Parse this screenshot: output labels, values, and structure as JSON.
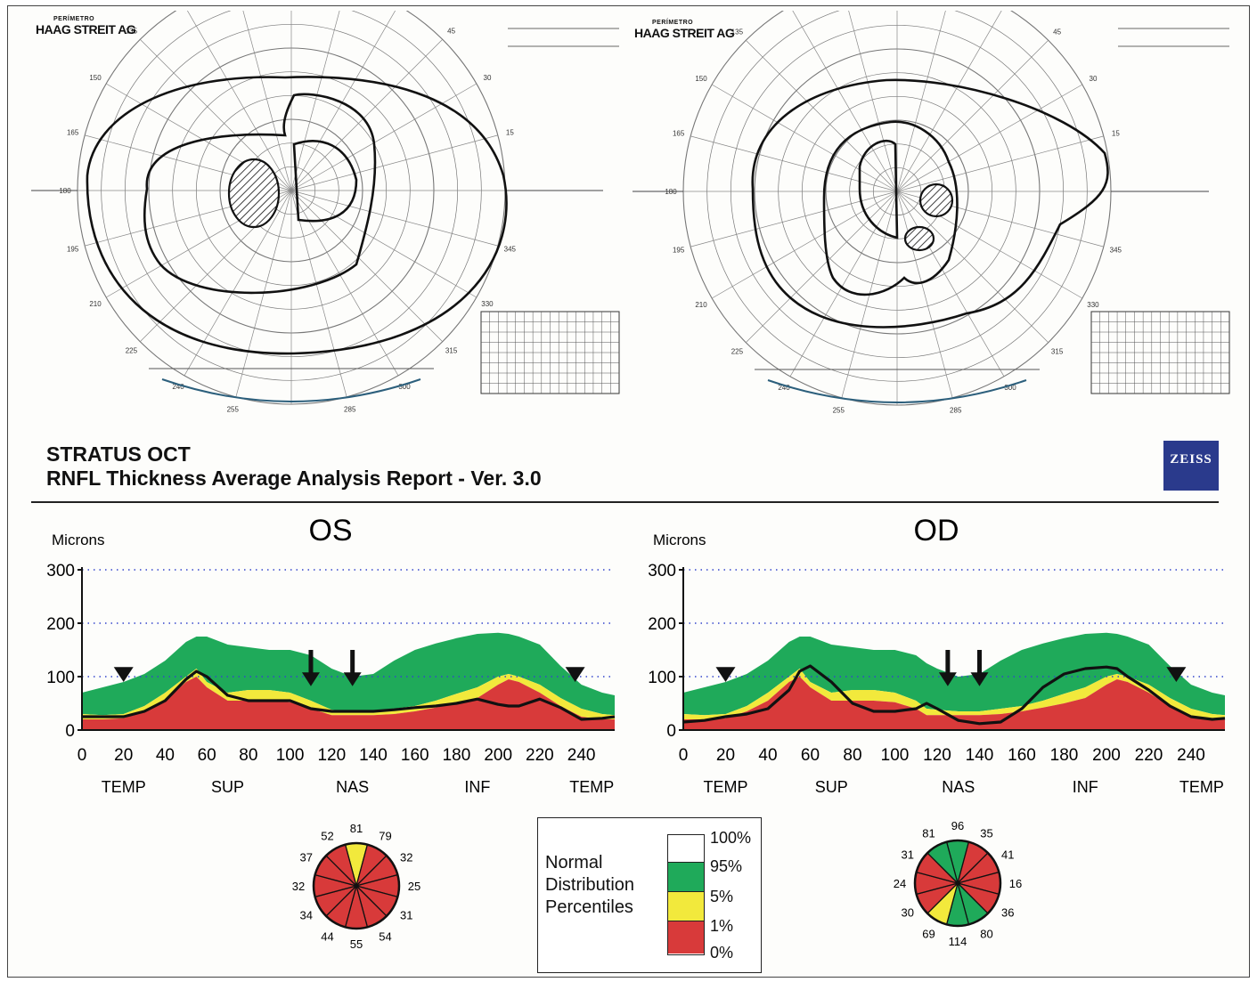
{
  "header": {
    "line1": "STRATUS OCT",
    "line2": "RNFL Thickness Average Analysis  Report - Ver. 3.0",
    "logo": "ZEISS"
  },
  "perimetry": [
    {
      "brand_small": "PERÍMETRO",
      "brand": "HAAG STREIT AG"
    },
    {
      "brand_small": "PERÍMETRO",
      "brand": "HAAG STREIT AG"
    }
  ],
  "colors": {
    "normal_band": "#1faa5a",
    "borderline_band": "#f2e93c",
    "abnormal_band": "#d83a3a",
    "grid": "#3344cc"
  },
  "chart_data": [
    {
      "type": "area",
      "title": "OS",
      "ylabel": "Microns",
      "ylim": [
        0,
        300
      ],
      "xlim": [
        0,
        256
      ],
      "yticks": [
        0,
        100,
        200,
        300
      ],
      "xticks": [
        0,
        20,
        40,
        60,
        80,
        100,
        120,
        140,
        160,
        180,
        200,
        220,
        240
      ],
      "sector_labels": [
        "TEMP",
        "SUP",
        "NAS",
        "INF",
        "TEMP"
      ],
      "grid": "dotted horizontal",
      "x": [
        0,
        10,
        20,
        30,
        40,
        50,
        55,
        60,
        70,
        80,
        90,
        100,
        110,
        120,
        130,
        140,
        150,
        160,
        170,
        180,
        190,
        200,
        205,
        210,
        220,
        230,
        240,
        250,
        256
      ],
      "series": [
        {
          "values": [
            25,
            25,
            25,
            35,
            55,
            95,
            110,
            100,
            65,
            55,
            55,
            55,
            40,
            35,
            35,
            35,
            38,
            42,
            45,
            50,
            58,
            48,
            45,
            45,
            58,
            42,
            20,
            22,
            25
          ]
        }
      ],
      "bands": {
        "p1": [
          20,
          20,
          22,
          35,
          55,
          90,
          100,
          80,
          55,
          55,
          55,
          52,
          40,
          28,
          28,
          28,
          30,
          35,
          42,
          50,
          60,
          85,
          95,
          90,
          70,
          45,
          25,
          20,
          20
        ],
        "p5": [
          30,
          28,
          30,
          45,
          70,
          100,
          115,
          90,
          70,
          75,
          75,
          70,
          55,
          38,
          35,
          35,
          40,
          45,
          55,
          68,
          80,
          100,
          105,
          100,
          85,
          60,
          40,
          30,
          28
        ],
        "p95": [
          70,
          80,
          90,
          105,
          130,
          165,
          175,
          175,
          160,
          155,
          150,
          150,
          140,
          115,
          100,
          105,
          130,
          150,
          162,
          172,
          180,
          182,
          180,
          175,
          160,
          120,
          85,
          70,
          65
        ],
        "p100": [
          70,
          80,
          90,
          105,
          130,
          165,
          175,
          175,
          160,
          155,
          150,
          150,
          140,
          115,
          100,
          105,
          130,
          150,
          162,
          172,
          180,
          182,
          180,
          175,
          160,
          120,
          85,
          70,
          65
        ]
      },
      "arrows": [
        20,
        110,
        130,
        237
      ],
      "clock_hours": [
        81,
        79,
        32,
        25,
        31,
        54,
        55,
        44,
        34,
        32,
        37,
        52
      ]
    },
    {
      "type": "area",
      "title": "OD",
      "ylabel": "Microns",
      "ylim": [
        0,
        300
      ],
      "xlim": [
        0,
        256
      ],
      "yticks": [
        0,
        100,
        200,
        300
      ],
      "xticks": [
        0,
        20,
        40,
        60,
        80,
        100,
        120,
        140,
        160,
        180,
        200,
        220,
        240
      ],
      "sector_labels": [
        "TEMP",
        "SUP",
        "NAS",
        "INF",
        "TEMP"
      ],
      "grid": "dotted horizontal",
      "x": [
        0,
        10,
        20,
        30,
        40,
        50,
        55,
        60,
        70,
        80,
        90,
        100,
        110,
        115,
        120,
        130,
        140,
        150,
        160,
        170,
        180,
        190,
        200,
        205,
        210,
        220,
        230,
        240,
        250,
        256
      ],
      "series": [
        {
          "values": [
            15,
            18,
            25,
            30,
            40,
            75,
            110,
            120,
            90,
            50,
            35,
            35,
            40,
            50,
            40,
            18,
            12,
            15,
            40,
            80,
            105,
            115,
            118,
            115,
            100,
            75,
            45,
            25,
            20,
            22
          ]
        }
      ],
      "bands": {
        "p1": [
          20,
          20,
          22,
          35,
          55,
          90,
          100,
          80,
          55,
          55,
          55,
          52,
          40,
          28,
          28,
          28,
          28,
          30,
          35,
          42,
          50,
          60,
          85,
          95,
          90,
          70,
          45,
          25,
          20,
          20
        ],
        "p5": [
          30,
          28,
          30,
          45,
          70,
          100,
          115,
          90,
          70,
          75,
          75,
          70,
          55,
          40,
          38,
          35,
          35,
          40,
          45,
          55,
          68,
          80,
          100,
          105,
          100,
          85,
          60,
          40,
          30,
          28
        ],
        "p95": [
          70,
          80,
          90,
          105,
          130,
          165,
          175,
          175,
          160,
          155,
          150,
          150,
          140,
          125,
          115,
          100,
          105,
          130,
          150,
          162,
          172,
          180,
          182,
          180,
          175,
          160,
          120,
          85,
          70,
          65
        ],
        "p100": [
          70,
          80,
          90,
          105,
          130,
          165,
          175,
          175,
          160,
          155,
          150,
          150,
          140,
          125,
          115,
          100,
          105,
          130,
          150,
          162,
          172,
          180,
          182,
          180,
          175,
          160,
          120,
          85,
          70,
          65
        ]
      },
      "arrows": [
        20,
        125,
        140,
        233
      ],
      "clock_hours": [
        96,
        35,
        41,
        16,
        36,
        80,
        114,
        69,
        30,
        24,
        31,
        81
      ]
    }
  ],
  "legend": {
    "title_lines": [
      "Normal",
      "Distribution",
      "Percentiles"
    ],
    "ticks": [
      "100%",
      "95%",
      "5%",
      "1%",
      "0%"
    ]
  }
}
